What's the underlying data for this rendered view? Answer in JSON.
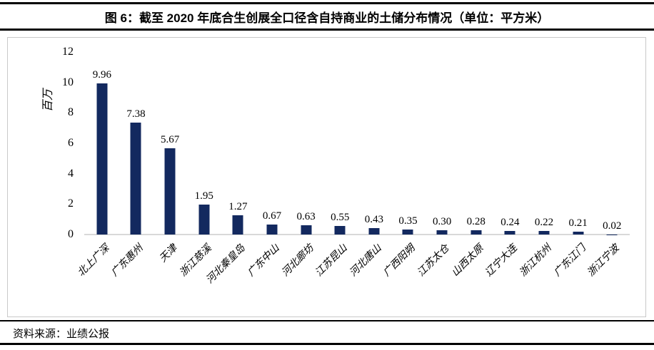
{
  "header": {
    "title": "图 6：截至 2020 年底合生创展全口径含自持商业的土储分布情况（单位：平方米）"
  },
  "chart_data": {
    "type": "bar",
    "title": "截至 2020 年底合生创展全口径含自持商业的土储分布情况",
    "unit": "平方米",
    "y_axis_title": "百万",
    "categories": [
      "北上广深",
      "广东惠州",
      "天津",
      "浙江慈溪",
      "河北秦皇岛",
      "广东中山",
      "河北廊坊",
      "江苏昆山",
      "河北唐山",
      "广西阳朔",
      "江苏太仓",
      "山西太原",
      "辽宁大连",
      "浙江杭州",
      "广东江门",
      "浙江宁波"
    ],
    "values": [
      9.96,
      7.38,
      5.67,
      1.95,
      1.27,
      0.67,
      0.63,
      0.55,
      0.43,
      0.35,
      0.3,
      0.28,
      0.24,
      0.22,
      0.21,
      0.02
    ],
    "ylim": [
      0,
      12
    ],
    "yticks": [
      0,
      2,
      4,
      6,
      8,
      10,
      12
    ],
    "bar_color": "#13295f",
    "axis_line_color": "#d9d9d9",
    "grid": false,
    "legend": false,
    "data_labels": true
  },
  "source": {
    "text": "资料来源：业绩公报"
  }
}
